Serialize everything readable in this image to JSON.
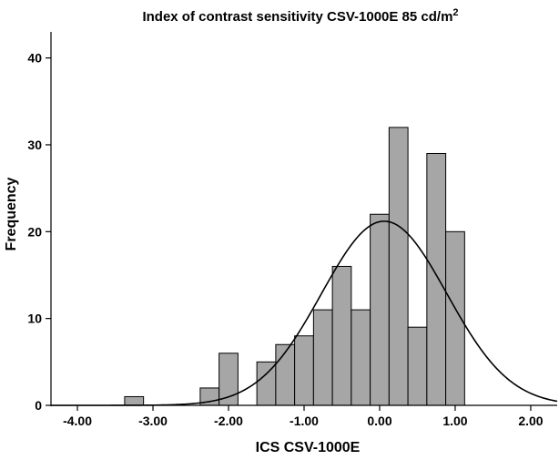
{
  "chart_data": {
    "type": "bar",
    "title": "Index of contrast sensitivity CSV-1000E 85 cd/m",
    "title_superscript": "2",
    "xlabel": "ICS CSV-1000E",
    "ylabel": "Frequency",
    "xlim": [
      -4.35,
      2.35
    ],
    "ylim": [
      0,
      43
    ],
    "x_ticks": [
      -4.0,
      -3.0,
      -2.0,
      -1.0,
      0.0,
      1.0,
      2.0
    ],
    "x_tick_labels": [
      "-4.00",
      "-3.00",
      "-2.00",
      "-1.00",
      "0.00",
      "1.00",
      "2.00"
    ],
    "y_ticks": [
      0,
      10,
      20,
      30,
      40
    ],
    "y_tick_labels": [
      "0",
      "10",
      "20",
      "30",
      "40"
    ],
    "bin_width": 0.25,
    "bins": [
      {
        "start": -3.375,
        "end": -3.125,
        "count": 1
      },
      {
        "start": -2.375,
        "end": -2.125,
        "count": 2
      },
      {
        "start": -2.125,
        "end": -1.875,
        "count": 6
      },
      {
        "start": -1.625,
        "end": -1.375,
        "count": 5
      },
      {
        "start": -1.375,
        "end": -1.125,
        "count": 7
      },
      {
        "start": -1.125,
        "end": -0.875,
        "count": 8
      },
      {
        "start": -0.875,
        "end": -0.625,
        "count": 11
      },
      {
        "start": -0.625,
        "end": -0.375,
        "count": 16
      },
      {
        "start": -0.375,
        "end": -0.125,
        "count": 11
      },
      {
        "start": -0.125,
        "end": 0.125,
        "count": 22
      },
      {
        "start": 0.125,
        "end": 0.375,
        "count": 32
      },
      {
        "start": 0.375,
        "end": 0.625,
        "count": 9
      },
      {
        "start": 0.625,
        "end": 0.875,
        "count": 29
      },
      {
        "start": 0.875,
        "end": 1.125,
        "count": 20
      }
    ],
    "normal_curve": {
      "mean": 0.06,
      "sd": 0.83,
      "peak": 21.2
    },
    "bar_color": "#a6a6a6",
    "bar_edge_color": "#000000",
    "curve_color": "#000000",
    "grid": false,
    "legend": "none"
  }
}
